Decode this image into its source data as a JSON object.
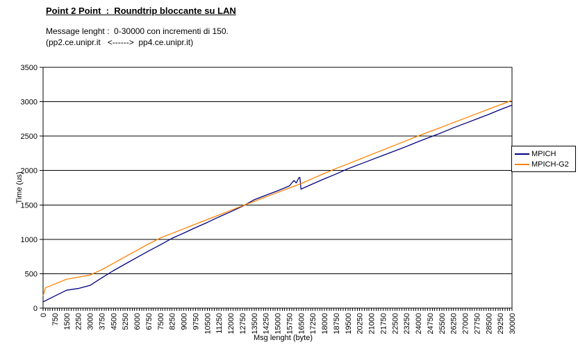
{
  "header": {
    "title": "Point 2 Point  :  Roundtrip bloccante su LAN",
    "subtitle_line1": "Message lenght :  0-30000 con incrementi di 150.",
    "subtitle_line2": "(pp2.ce.unipr.it   <------>  pp4.ce.unipr.it)"
  },
  "chart_data": {
    "type": "line",
    "title": "Point 2 Point : Roundtrip bloccante su LAN",
    "xlabel": "Msg lenght (byte)",
    "ylabel": "Time (us)",
    "xlim": [
      0,
      30000
    ],
    "ylim": [
      0,
      3500
    ],
    "x_label_step": 750,
    "x_minor_tick_step": 150,
    "y_tick_step": 500,
    "grid": "horizontal",
    "legend_position": "right",
    "background": "#ffffff",
    "axis_color": "#000000",
    "series": [
      {
        "name": "MPICH",
        "color": "#000080",
        "x": [
          0,
          750,
          1500,
          2250,
          3000,
          3750,
          4500,
          5250,
          6000,
          6750,
          7500,
          8250,
          9000,
          9750,
          10500,
          11250,
          12000,
          12750,
          13500,
          14250,
          15000,
          15750,
          16050,
          16200,
          16350,
          16425,
          16500,
          17250,
          18000,
          18750,
          19500,
          20250,
          21000,
          21750,
          22500,
          23250,
          24000,
          24750,
          25500,
          26250,
          27000,
          27750,
          28500,
          29250,
          30000
        ],
        "values": [
          90,
          175,
          260,
          285,
          330,
          440,
          545,
          640,
          735,
          830,
          920,
          1015,
          1090,
          1170,
          1245,
          1325,
          1400,
          1480,
          1575,
          1640,
          1705,
          1775,
          1855,
          1820,
          1890,
          1900,
          1730,
          1805,
          1880,
          1950,
          2025,
          2090,
          2155,
          2220,
          2285,
          2350,
          2420,
          2485,
          2550,
          2620,
          2685,
          2750,
          2815,
          2885,
          2950
        ]
      },
      {
        "name": "MPICH-G2",
        "color": "#FF8000",
        "x": [
          0,
          150,
          750,
          1500,
          2250,
          3000,
          3750,
          4500,
          5250,
          6000,
          6750,
          7500,
          8250,
          9000,
          9750,
          10500,
          11250,
          12000,
          12750,
          13500,
          14250,
          15000,
          15750,
          16500,
          17250,
          18000,
          18750,
          19500,
          20250,
          21000,
          21750,
          22500,
          23250,
          24000,
          24750,
          25500,
          26250,
          27000,
          27750,
          28500,
          29250,
          30000
        ],
        "values": [
          180,
          295,
          350,
          420,
          450,
          480,
          558,
          652,
          745,
          839,
          933,
          1020,
          1086,
          1153,
          1220,
          1287,
          1353,
          1420,
          1487,
          1552,
          1616,
          1681,
          1745,
          1810,
          1884,
          1958,
          2030,
          2096,
          2164,
          2232,
          2299,
          2367,
          2434,
          2502,
          2567,
          2631,
          2696,
          2761,
          2826,
          2891,
          2955,
          3020
        ]
      }
    ]
  }
}
